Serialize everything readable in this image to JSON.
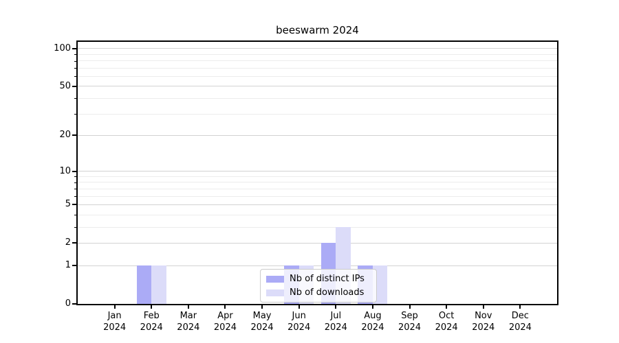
{
  "chart_data": {
    "type": "bar",
    "title": "beeswarm 2024",
    "categories": [
      "Jan",
      "Feb",
      "Mar",
      "Apr",
      "May",
      "Jun",
      "Jul",
      "Aug",
      "Sep",
      "Oct",
      "Nov",
      "Dec"
    ],
    "year": "2024",
    "series": [
      {
        "name": "Nb of distinct IPs",
        "color": "#ababf6",
        "values": [
          0,
          1,
          0,
          0,
          0,
          1,
          2,
          1,
          0,
          0,
          0,
          0
        ]
      },
      {
        "name": "Nb of downloads",
        "color": "#dcdcf9",
        "values": [
          0,
          1,
          0,
          0,
          0,
          1,
          3,
          1,
          0,
          0,
          0,
          0
        ]
      }
    ],
    "yscale": "log1p",
    "ylim": [
      0,
      113
    ],
    "yticks_major": [
      0,
      1,
      2,
      5,
      10,
      20,
      50,
      100
    ],
    "yticks_minor": [
      3,
      4,
      6,
      7,
      8,
      9,
      30,
      40,
      60,
      70,
      80,
      90
    ],
    "xlabel": "",
    "ylabel": "",
    "grid": "on",
    "legend_position": "lower center, overlapping plot",
    "colors": {
      "axis": "#000000",
      "grid_major": "#d2d2d2",
      "grid_minor": "#ececec",
      "legend_border": "#cbcbcb"
    }
  }
}
